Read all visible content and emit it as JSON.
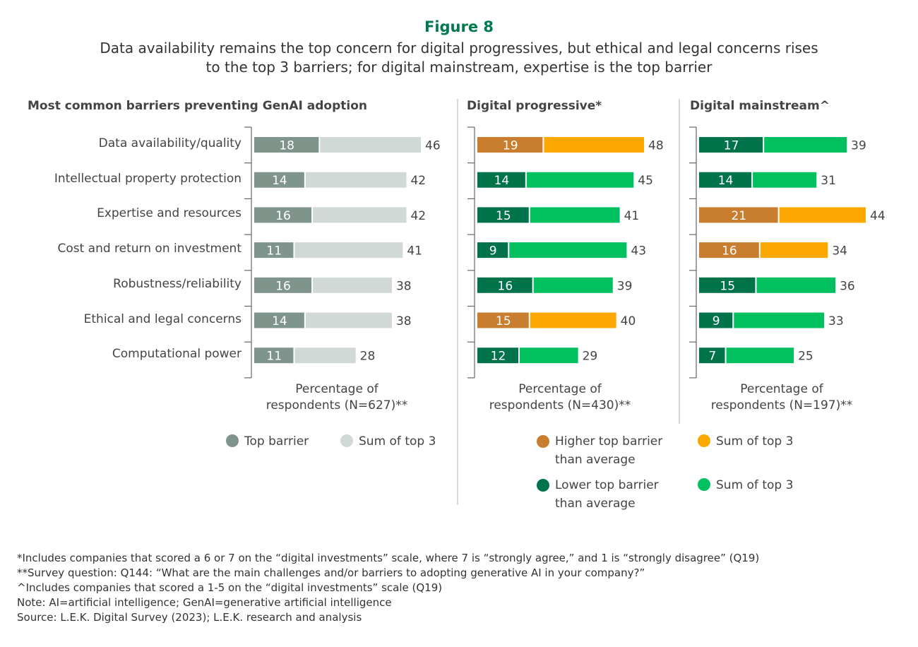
{
  "title": "Figure 8",
  "subtitle": [
    "Data availability remains the top concern for digital progressives, but ethical and legal concerns rises",
    "to the top 3 barriers; for digital mainstream, expertise is the top barrier"
  ],
  "colors": {
    "title": "#007a4d",
    "gray_dark": "#7f948b",
    "gray_light": "#d0d9d6",
    "orange_dark": "#c97e2f",
    "orange": "#fca800",
    "green_dark": "#00734a",
    "green": "#00c060"
  },
  "chart_data": [
    {
      "type": "bar",
      "orientation": "horizontal",
      "stacked": true,
      "title": "Most common barriers preventing GenAI adoption",
      "categories": [
        "Data availability/quality",
        "Intellectual property protection",
        "Expertise and resources",
        "Cost and return on investment",
        "Robustness/reliability",
        "Ethical and legal concerns",
        "Computational power"
      ],
      "top_barrier": [
        18,
        14,
        16,
        11,
        16,
        14,
        11
      ],
      "sum_of_top3": [
        46,
        42,
        42,
        41,
        38,
        38,
        28
      ],
      "xlabel": [
        "Percentage of",
        "respondents (N=627)**"
      ],
      "legend": [
        {
          "label": "Top barrier",
          "color": "#7f948b"
        },
        {
          "label": "Sum of top 3",
          "color": "#d0d9d6"
        }
      ]
    },
    {
      "type": "bar",
      "orientation": "horizontal",
      "stacked": true,
      "title": "Digital  progressive*",
      "top_barrier": [
        19,
        14,
        15,
        9,
        16,
        15,
        12
      ],
      "sum_of_top3": [
        48,
        45,
        41,
        43,
        39,
        40,
        29
      ],
      "higher_than_average": [
        true,
        false,
        false,
        false,
        false,
        true,
        false
      ],
      "xlabel": [
        "Percentage of",
        "respondents (N=430)**"
      ]
    },
    {
      "type": "bar",
      "orientation": "horizontal",
      "stacked": true,
      "title": "Digital  mainstream^",
      "top_barrier": [
        17,
        14,
        21,
        16,
        15,
        9,
        7
      ],
      "sum_of_top3": [
        39,
        31,
        44,
        34,
        36,
        33,
        25
      ],
      "higher_than_average": [
        false,
        false,
        true,
        true,
        false,
        false,
        false
      ],
      "xlabel": [
        "Percentage of",
        "respondents (N=197)**"
      ]
    }
  ],
  "legend2": [
    {
      "label": [
        "Higher top barrier",
        "than average"
      ],
      "color": "#c97e2f"
    },
    {
      "label": [
        "Sum of top 3"
      ],
      "color": "#fca800"
    },
    {
      "label": [
        "Lower top barrier",
        "than average"
      ],
      "color": "#00734a"
    },
    {
      "label": [
        "Sum of top 3"
      ],
      "color": "#00c060"
    }
  ],
  "footnotes": [
    "*Includes companies that scored a 6 or 7 on the “digital investments” scale, where 7 is “strongly agree,” and 1 is “strongly disagree” (Q19)",
    "**Survey question: Q144: “What are the main challenges and/or barriers to adopting generative AI in your company?”",
    "^Includes companies that scored a 1-5 on the “digital investments” scale (Q19)",
    "Note: AI=artificial intelligence; GenAI=generative artificial intelligence",
    "Source: L.E.K. Digital Survey (2023); L.E.K. research and analysis"
  ]
}
